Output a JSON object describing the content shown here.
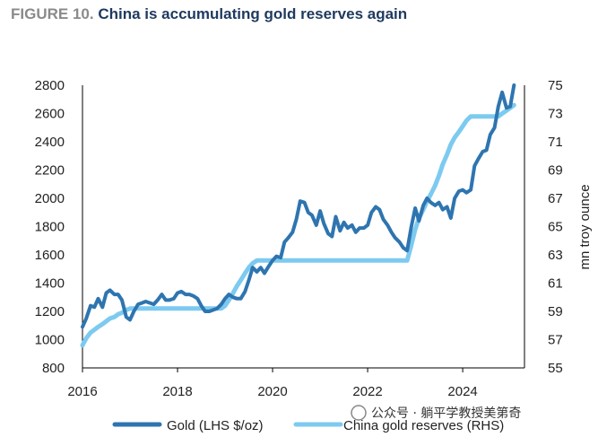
{
  "figure_label": "FIGURE 10.",
  "title": "China is accumulating gold reserves again",
  "watermark": "公众号 · 躺平学教授美第奇",
  "colors": {
    "gold": "#2e75b0",
    "reserves": "#7dcaf0",
    "title": "#1f3a60",
    "label": "#8a8a8a"
  },
  "chart_data": {
    "type": "line",
    "title": "China is accumulating gold reserves again",
    "xlabel": "",
    "ylabel": "",
    "y2label": "mn troy ounce",
    "xlim": [
      2016,
      2025.3
    ],
    "ylim": [
      800,
      2800
    ],
    "y2lim": [
      55,
      75
    ],
    "x_ticks": [
      "2016",
      "2018",
      "2020",
      "2022",
      "2024"
    ],
    "y_ticks": [
      "800",
      "1000",
      "1200",
      "1400",
      "1600",
      "1800",
      "2000",
      "2200",
      "2400",
      "2600",
      "2800"
    ],
    "y2_ticks": [
      "55",
      "57",
      "59",
      "61",
      "63",
      "65",
      "67",
      "69",
      "71",
      "73",
      "75"
    ],
    "legend_position": "bottom",
    "grid": false,
    "series": [
      {
        "name": "Gold  (LHS $/oz)",
        "axis": "left",
        "x": [
          2016.0,
          2016.08,
          2016.17,
          2016.25,
          2016.33,
          2016.42,
          2016.5,
          2016.58,
          2016.67,
          2016.75,
          2016.83,
          2016.92,
          2017.0,
          2017.08,
          2017.17,
          2017.25,
          2017.33,
          2017.42,
          2017.5,
          2017.58,
          2017.67,
          2017.75,
          2017.83,
          2017.92,
          2018.0,
          2018.08,
          2018.17,
          2018.25,
          2018.33,
          2018.42,
          2018.5,
          2018.58,
          2018.67,
          2018.75,
          2018.83,
          2018.92,
          2019.0,
          2019.08,
          2019.17,
          2019.25,
          2019.33,
          2019.42,
          2019.5,
          2019.58,
          2019.67,
          2019.75,
          2019.83,
          2019.92,
          2020.0,
          2020.08,
          2020.17,
          2020.25,
          2020.33,
          2020.42,
          2020.5,
          2020.58,
          2020.67,
          2020.75,
          2020.83,
          2020.92,
          2021.0,
          2021.08,
          2021.17,
          2021.25,
          2021.33,
          2021.42,
          2021.5,
          2021.58,
          2021.67,
          2021.75,
          2021.83,
          2021.92,
          2022.0,
          2022.08,
          2022.17,
          2022.25,
          2022.33,
          2022.42,
          2022.5,
          2022.58,
          2022.67,
          2022.75,
          2022.83,
          2022.92,
          2023.0,
          2023.08,
          2023.17,
          2023.25,
          2023.33,
          2023.42,
          2023.5,
          2023.58,
          2023.67,
          2023.75,
          2023.83,
          2023.92,
          2024.0,
          2024.08,
          2024.17,
          2024.25,
          2024.33,
          2024.42,
          2024.5,
          2024.58,
          2024.67,
          2024.75,
          2024.83,
          2024.92,
          2025.0,
          2025.08
        ],
        "values": [
          1090,
          1150,
          1240,
          1230,
          1290,
          1230,
          1330,
          1350,
          1320,
          1320,
          1280,
          1160,
          1140,
          1200,
          1250,
          1260,
          1270,
          1260,
          1250,
          1280,
          1320,
          1280,
          1280,
          1290,
          1330,
          1340,
          1320,
          1320,
          1310,
          1290,
          1240,
          1200,
          1200,
          1210,
          1220,
          1250,
          1290,
          1320,
          1300,
          1290,
          1290,
          1340,
          1420,
          1510,
          1480,
          1510,
          1470,
          1520,
          1560,
          1590,
          1580,
          1690,
          1720,
          1760,
          1850,
          1980,
          1970,
          1900,
          1880,
          1810,
          1910,
          1820,
          1750,
          1730,
          1870,
          1770,
          1830,
          1790,
          1810,
          1760,
          1790,
          1790,
          1810,
          1900,
          1940,
          1920,
          1850,
          1810,
          1760,
          1720,
          1690,
          1650,
          1630,
          1800,
          1930,
          1840,
          1950,
          2000,
          1970,
          1950,
          1970,
          1920,
          1940,
          1860,
          2000,
          2050,
          2060,
          2040,
          2060,
          2230,
          2280,
          2330,
          2340,
          2450,
          2500,
          2650,
          2750,
          2640,
          2650,
          2800
        ]
      },
      {
        "name": "China gold reserves (RHS)",
        "axis": "right",
        "x": [
          2016.0,
          2016.08,
          2016.17,
          2016.25,
          2016.33,
          2016.42,
          2016.5,
          2016.58,
          2016.67,
          2016.75,
          2016.83,
          2016.92,
          2017.0,
          2017.5,
          2018.0,
          2018.5,
          2018.92,
          2019.0,
          2019.08,
          2019.17,
          2019.25,
          2019.33,
          2019.42,
          2019.5,
          2019.58,
          2019.67,
          2019.75,
          2020.0,
          2021.0,
          2022.0,
          2022.83,
          2022.92,
          2023.0,
          2023.08,
          2023.17,
          2023.25,
          2023.33,
          2023.42,
          2023.5,
          2023.58,
          2023.67,
          2023.75,
          2023.83,
          2023.92,
          2024.0,
          2024.08,
          2024.17,
          2024.25,
          2024.33,
          2024.42,
          2024.5,
          2024.58,
          2024.67,
          2024.75,
          2024.83,
          2024.92,
          2025.0,
          2025.08
        ],
        "values": [
          56.6,
          57.1,
          57.5,
          57.7,
          57.9,
          58.1,
          58.3,
          58.5,
          58.6,
          58.8,
          58.9,
          59.1,
          59.2,
          59.2,
          59.2,
          59.2,
          59.2,
          59.4,
          59.8,
          60.3,
          60.8,
          61.2,
          61.7,
          62.1,
          62.4,
          62.6,
          62.6,
          62.6,
          62.6,
          62.6,
          62.6,
          63.7,
          64.8,
          65.6,
          66.2,
          66.8,
          67.3,
          67.9,
          68.6,
          69.4,
          70.1,
          70.8,
          71.3,
          71.7,
          72.1,
          72.5,
          72.8,
          72.8,
          72.8,
          72.8,
          72.8,
          72.8,
          72.8,
          72.8,
          73.0,
          73.2,
          73.4,
          73.6
        ]
      }
    ]
  }
}
